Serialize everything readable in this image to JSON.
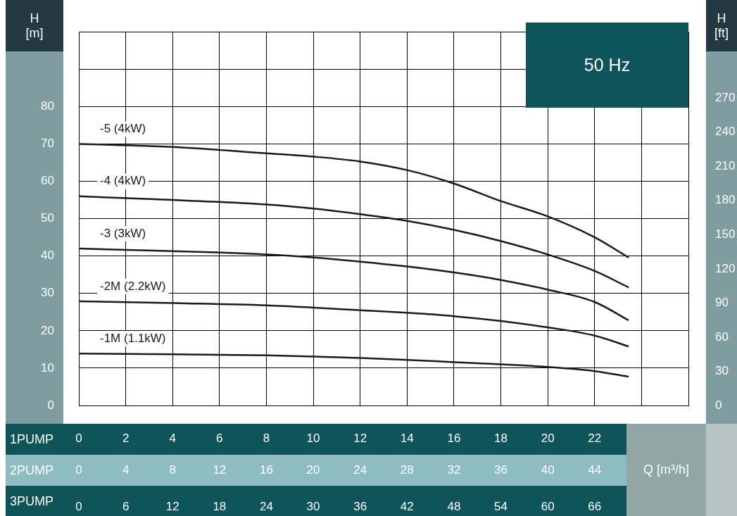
{
  "chart_data": {
    "type": "line",
    "title": "50 Hz",
    "xlabel": "Q [m³/h]",
    "ylabel": "H [m]",
    "y2label": "H [ft]",
    "annotations": [
      "1PUMP",
      "2PUMP",
      "3PUMP",
      "0",
      "2",
      "4",
      "6",
      "8",
      "10",
      "12",
      "14",
      "16",
      "18",
      "20",
      "22"
    ],
    "x": [
      0,
      8,
      16,
      20,
      24,
      28,
      32,
      36,
      40,
      44,
      46.9
    ],
    "series": [
      {
        "name": "-5 (4kW)",
        "color": "#1a1a1a",
        "values": [
          70,
          69.2,
          67.5,
          66.6,
          65.3,
          63,
          59.4,
          54.7,
          50.6,
          45,
          39.6
        ]
      },
      {
        "name": "-4 (4kW)",
        "color": "#1a1a1a",
        "values": [
          56,
          55,
          53.8,
          52.7,
          51.2,
          49.4,
          47,
          44,
          40.4,
          36,
          31.6
        ]
      },
      {
        "name": "-3 (3kW)",
        "color": "#1a1a1a",
        "values": [
          42,
          41.3,
          40.4,
          39.6,
          38.5,
          37.2,
          35.6,
          33.6,
          31,
          27.7,
          22.8
        ]
      },
      {
        "name": "-2M (2.2kW)",
        "color": "#1a1a1a",
        "values": [
          27.9,
          27.4,
          26.8,
          26.2,
          25.5,
          24.8,
          23.9,
          22.6,
          20.9,
          18.7,
          15.8
        ]
      },
      {
        "name": "-1M (1.1kW)",
        "color": "#1a1a1a",
        "values": [
          13.9,
          13.7,
          13.4,
          13.1,
          12.7,
          12.2,
          11.6,
          11,
          10.3,
          9.2,
          7.7
        ]
      }
    ],
    "xlim": [
      0,
      52
    ],
    "xticks": [
      0,
      4,
      8,
      12,
      16,
      20,
      24,
      28,
      32,
      36,
      40,
      44,
      {
        "value": 48,
        "label": null
      },
      {
        "value": 52,
        "label": null
      }
    ],
    "x2lim": [
      0,
      78
    ],
    "x2ticks": [
      0,
      6,
      12,
      18,
      24,
      30,
      36,
      42,
      48,
      54,
      60,
      66
    ],
    "ylim": [
      0,
      100
    ],
    "yticks": [
      0,
      10,
      20,
      30,
      40,
      50,
      60,
      70,
      80,
      {
        "value": 90,
        "label": null
      },
      {
        "value": 100,
        "label": null
      }
    ],
    "y2lim": [
      0,
      328.08
    ],
    "y2ticks": [
      0,
      30,
      60,
      90,
      120,
      150,
      180,
      210,
      240,
      270
    ],
    "grid": true,
    "legend": false,
    "marker": "none",
    "line_style": "solid"
  }
}
